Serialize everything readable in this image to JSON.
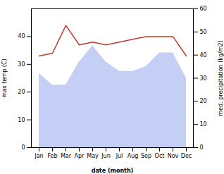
{
  "chart_data": {
    "type": "line",
    "xlabel": "date (month)",
    "ylabel": "max temp (C)",
    "y2label": "med. precipitation (kg/m2)",
    "categories": [
      "Jan",
      "Feb",
      "Mar",
      "Apr",
      "May",
      "Jun",
      "Jul",
      "Aug",
      "Sep",
      "Oct",
      "Nov",
      "Dec"
    ],
    "series": [
      {
        "type": "area",
        "axis": "y2",
        "color": "#c5cef5",
        "values": [
          32,
          27,
          27,
          37,
          44,
          37,
          33,
          33,
          35,
          41,
          41,
          30
        ]
      },
      {
        "type": "line",
        "color": "#c0392b",
        "values": [
          33,
          34,
          44,
          37,
          38,
          37,
          38,
          39,
          40,
          40,
          40,
          33
        ]
      }
    ],
    "ylim": [
      0,
      50
    ],
    "yticks": [
      0,
      10,
      20,
      30,
      40
    ],
    "y2lim": [
      0,
      60
    ],
    "y2ticks": [
      0,
      10,
      20,
      30,
      40,
      50,
      60
    ]
  }
}
